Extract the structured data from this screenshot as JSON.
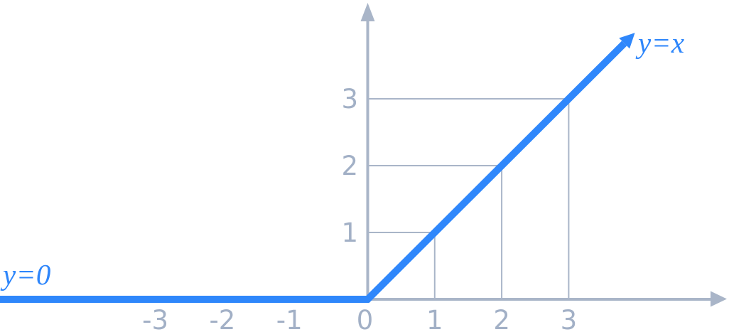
{
  "figure": {
    "background": "#FFFFFF",
    "colors": {
      "function_line": "#2F87FB",
      "function_label": "#2E86FB",
      "axis": "#A9B5C8",
      "guide": "#A9B5C8",
      "tick_label": "#A2B0C6"
    },
    "labels": {
      "positive_branch": "y=x",
      "negative_branch": "y=0"
    }
  },
  "chart_data": {
    "type": "line",
    "title": "",
    "xlabel": "",
    "ylabel": "",
    "x_tick_labels": [
      "-3",
      "-2",
      "-1",
      "0",
      "1",
      "2",
      "3"
    ],
    "x_tick_values": [
      -3,
      -2,
      -1,
      0,
      1,
      2,
      3
    ],
    "y_tick_labels": [
      "1",
      "2",
      "3"
    ],
    "y_tick_values": [
      1,
      2,
      3
    ],
    "xlim": [
      -5.5,
      5.4
    ],
    "ylim": [
      -0.5,
      4.4
    ],
    "grid": false,
    "legend_position": "none",
    "series": [
      {
        "name": "y=0",
        "color": "#2F87FB",
        "points": [
          [
            -5.5,
            0
          ],
          [
            0,
            0
          ]
        ],
        "arrow_end": false
      },
      {
        "name": "y=x",
        "color": "#2F87FB",
        "points": [
          [
            0,
            0
          ],
          [
            3.83,
            3.83
          ]
        ],
        "arrow_end": true
      }
    ],
    "guide_points": [
      [
        1,
        1
      ],
      [
        2,
        2
      ],
      [
        3,
        3
      ]
    ]
  }
}
